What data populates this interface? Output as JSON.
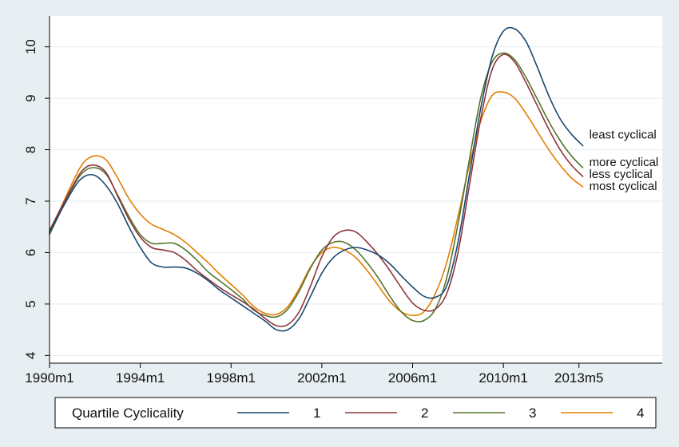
{
  "chart_data": {
    "type": "line",
    "xlabel": "",
    "ylabel": "",
    "xlim": [
      1990.0,
      2017.0
    ],
    "ylim": [
      3.85,
      10.6
    ],
    "x_ticks": [
      {
        "value": 1990.0,
        "label": "1990m1"
      },
      {
        "value": 1994.0,
        "label": "1994m1"
      },
      {
        "value": 1998.0,
        "label": "1998m1"
      },
      {
        "value": 2002.0,
        "label": "2002m1"
      },
      {
        "value": 2006.0,
        "label": "2006m1"
      },
      {
        "value": 2010.0,
        "label": "2010m1"
      },
      {
        "value": 2013.33,
        "label": "2013m5"
      }
    ],
    "y_ticks": [
      4,
      5,
      6,
      7,
      8,
      9,
      10
    ],
    "grid": "horizontal",
    "legend": {
      "title": "Quartile Cyclicality",
      "placement": "bottom"
    },
    "series": [
      {
        "name": "1",
        "end_label": "least cyclical",
        "color": "#1a476f",
        "points": [
          [
            1990.0,
            6.4
          ],
          [
            1991.0,
            7.2
          ],
          [
            1991.5,
            7.47
          ],
          [
            1992.0,
            7.5
          ],
          [
            1992.5,
            7.3
          ],
          [
            1993.0,
            6.95
          ],
          [
            1993.5,
            6.5
          ],
          [
            1994.0,
            6.1
          ],
          [
            1994.5,
            5.8
          ],
          [
            1995.0,
            5.72
          ],
          [
            1995.5,
            5.72
          ],
          [
            1996.0,
            5.7
          ],
          [
            1996.5,
            5.6
          ],
          [
            1997.0,
            5.45
          ],
          [
            1997.5,
            5.27
          ],
          [
            1998.0,
            5.12
          ],
          [
            1998.5,
            4.97
          ],
          [
            1999.0,
            4.82
          ],
          [
            1999.5,
            4.67
          ],
          [
            2000.0,
            4.5
          ],
          [
            2000.5,
            4.5
          ],
          [
            2001.0,
            4.72
          ],
          [
            2001.5,
            5.15
          ],
          [
            2002.0,
            5.6
          ],
          [
            2002.5,
            5.9
          ],
          [
            2003.0,
            6.05
          ],
          [
            2003.5,
            6.1
          ],
          [
            2004.0,
            6.05
          ],
          [
            2004.5,
            5.95
          ],
          [
            2005.0,
            5.78
          ],
          [
            2005.5,
            5.55
          ],
          [
            2006.0,
            5.33
          ],
          [
            2006.5,
            5.15
          ],
          [
            2007.0,
            5.13
          ],
          [
            2007.5,
            5.35
          ],
          [
            2008.0,
            6.2
          ],
          [
            2008.5,
            7.5
          ],
          [
            2009.0,
            8.8
          ],
          [
            2009.5,
            9.8
          ],
          [
            2010.0,
            10.3
          ],
          [
            2010.5,
            10.35
          ],
          [
            2011.0,
            10.1
          ],
          [
            2011.5,
            9.6
          ],
          [
            2012.0,
            9.05
          ],
          [
            2012.5,
            8.6
          ],
          [
            2013.0,
            8.3
          ],
          [
            2013.5,
            8.08
          ]
        ]
      },
      {
        "name": "2",
        "end_label": "less cyclical",
        "color": "#90353b",
        "points": [
          [
            1990.0,
            6.43
          ],
          [
            1991.0,
            7.28
          ],
          [
            1991.5,
            7.62
          ],
          [
            1992.0,
            7.7
          ],
          [
            1992.5,
            7.55
          ],
          [
            1993.0,
            7.1
          ],
          [
            1993.5,
            6.65
          ],
          [
            1994.0,
            6.3
          ],
          [
            1994.5,
            6.1
          ],
          [
            1995.0,
            6.05
          ],
          [
            1995.5,
            6.0
          ],
          [
            1996.0,
            5.85
          ],
          [
            1996.5,
            5.65
          ],
          [
            1997.0,
            5.48
          ],
          [
            1997.5,
            5.32
          ],
          [
            1998.0,
            5.18
          ],
          [
            1998.5,
            5.05
          ],
          [
            1999.0,
            4.9
          ],
          [
            1999.5,
            4.72
          ],
          [
            2000.0,
            4.58
          ],
          [
            2000.5,
            4.6
          ],
          [
            2001.0,
            4.85
          ],
          [
            2001.5,
            5.35
          ],
          [
            2002.0,
            5.92
          ],
          [
            2002.5,
            6.3
          ],
          [
            2003.0,
            6.43
          ],
          [
            2003.5,
            6.4
          ],
          [
            2004.0,
            6.2
          ],
          [
            2004.5,
            5.95
          ],
          [
            2005.0,
            5.65
          ],
          [
            2005.5,
            5.32
          ],
          [
            2006.0,
            5.02
          ],
          [
            2006.5,
            4.88
          ],
          [
            2007.0,
            4.9
          ],
          [
            2007.5,
            5.2
          ],
          [
            2008.0,
            6.0
          ],
          [
            2008.5,
            7.3
          ],
          [
            2009.0,
            8.6
          ],
          [
            2009.5,
            9.55
          ],
          [
            2010.0,
            9.85
          ],
          [
            2010.5,
            9.7
          ],
          [
            2011.0,
            9.3
          ],
          [
            2011.5,
            8.85
          ],
          [
            2012.0,
            8.4
          ],
          [
            2012.5,
            8.0
          ],
          [
            2013.0,
            7.7
          ],
          [
            2013.5,
            7.48
          ]
        ]
      },
      {
        "name": "3",
        "end_label": "more cyclical",
        "color": "#55752f",
        "points": [
          [
            1990.0,
            6.35
          ],
          [
            1991.0,
            7.25
          ],
          [
            1991.5,
            7.57
          ],
          [
            1992.0,
            7.65
          ],
          [
            1992.5,
            7.52
          ],
          [
            1993.0,
            7.12
          ],
          [
            1993.5,
            6.7
          ],
          [
            1994.0,
            6.35
          ],
          [
            1994.5,
            6.18
          ],
          [
            1995.0,
            6.18
          ],
          [
            1995.5,
            6.18
          ],
          [
            1996.0,
            6.05
          ],
          [
            1996.5,
            5.85
          ],
          [
            1997.0,
            5.62
          ],
          [
            1997.5,
            5.45
          ],
          [
            1998.0,
            5.28
          ],
          [
            1998.5,
            5.1
          ],
          [
            1999.0,
            4.88
          ],
          [
            1999.5,
            4.78
          ],
          [
            2000.0,
            4.75
          ],
          [
            2000.5,
            4.9
          ],
          [
            2001.0,
            5.25
          ],
          [
            2001.5,
            5.7
          ],
          [
            2002.0,
            6.05
          ],
          [
            2002.5,
            6.2
          ],
          [
            2003.0,
            6.2
          ],
          [
            2003.5,
            6.05
          ],
          [
            2004.0,
            5.8
          ],
          [
            2004.5,
            5.5
          ],
          [
            2005.0,
            5.15
          ],
          [
            2005.5,
            4.85
          ],
          [
            2006.0,
            4.68
          ],
          [
            2006.5,
            4.68
          ],
          [
            2007.0,
            4.9
          ],
          [
            2007.5,
            5.5
          ],
          [
            2008.0,
            6.55
          ],
          [
            2008.5,
            7.8
          ],
          [
            2009.0,
            9.0
          ],
          [
            2009.5,
            9.7
          ],
          [
            2010.0,
            9.88
          ],
          [
            2010.5,
            9.75
          ],
          [
            2011.0,
            9.4
          ],
          [
            2011.5,
            8.98
          ],
          [
            2012.0,
            8.55
          ],
          [
            2012.5,
            8.18
          ],
          [
            2013.0,
            7.88
          ],
          [
            2013.5,
            7.65
          ]
        ]
      },
      {
        "name": "4",
        "end_label": "most cyclical",
        "color": "#e37e00",
        "points": [
          [
            1990.0,
            6.38
          ],
          [
            1991.0,
            7.35
          ],
          [
            1991.5,
            7.75
          ],
          [
            1992.0,
            7.88
          ],
          [
            1992.5,
            7.8
          ],
          [
            1993.0,
            7.45
          ],
          [
            1993.5,
            7.05
          ],
          [
            1994.0,
            6.75
          ],
          [
            1994.5,
            6.55
          ],
          [
            1995.0,
            6.45
          ],
          [
            1995.5,
            6.35
          ],
          [
            1996.0,
            6.2
          ],
          [
            1996.5,
            6.0
          ],
          [
            1997.0,
            5.8
          ],
          [
            1997.5,
            5.58
          ],
          [
            1998.0,
            5.38
          ],
          [
            1998.5,
            5.18
          ],
          [
            1999.0,
            4.95
          ],
          [
            1999.5,
            4.82
          ],
          [
            2000.0,
            4.8
          ],
          [
            2000.5,
            4.95
          ],
          [
            2001.0,
            5.3
          ],
          [
            2001.5,
            5.72
          ],
          [
            2002.0,
            6.0
          ],
          [
            2002.5,
            6.1
          ],
          [
            2003.0,
            6.05
          ],
          [
            2003.5,
            5.9
          ],
          [
            2004.0,
            5.65
          ],
          [
            2004.5,
            5.35
          ],
          [
            2005.0,
            5.05
          ],
          [
            2005.5,
            4.85
          ],
          [
            2006.0,
            4.78
          ],
          [
            2006.5,
            4.85
          ],
          [
            2007.0,
            5.2
          ],
          [
            2007.5,
            5.8
          ],
          [
            2008.0,
            6.7
          ],
          [
            2008.5,
            7.7
          ],
          [
            2009.0,
            8.55
          ],
          [
            2009.5,
            9.05
          ],
          [
            2010.0,
            9.12
          ],
          [
            2010.5,
            9.0
          ],
          [
            2011.0,
            8.7
          ],
          [
            2011.5,
            8.35
          ],
          [
            2012.0,
            8.0
          ],
          [
            2012.5,
            7.7
          ],
          [
            2013.0,
            7.45
          ],
          [
            2013.5,
            7.28
          ]
        ]
      }
    ]
  }
}
